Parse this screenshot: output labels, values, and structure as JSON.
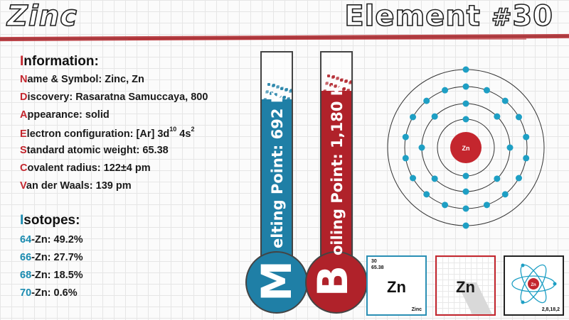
{
  "header": {
    "title": "Zinc",
    "element_label": "Element",
    "hash": "#",
    "element_number": "30"
  },
  "info": {
    "heading_cap": "I",
    "heading_rest": "nformation:",
    "lines": [
      {
        "cap": "N",
        "text": "ame & Symbol: Zinc, Zn"
      },
      {
        "cap": "D",
        "text": "iscovery: Rasaratna Samuccaya, 800"
      },
      {
        "cap": "A",
        "text": "ppearance: solid"
      },
      {
        "cap": "E",
        "text": "lectron configuration: [Ar] 3d",
        "sup1": "10",
        "mid": " 4s",
        "sup2": "2"
      },
      {
        "cap": "S",
        "text": "tandard atomic weight: 65.38"
      },
      {
        "cap": "C",
        "text": "ovalent radius: 122±4 pm"
      },
      {
        "cap": "V",
        "text": "an der Waals: 139 pm"
      }
    ]
  },
  "isotopes": {
    "heading_cap": "I",
    "heading_rest": "sotopes:",
    "items": [
      {
        "num": "64",
        "text": "-Zn: 49.2%"
      },
      {
        "num": "66",
        "text": "-Zn: 27.7%"
      },
      {
        "num": "68",
        "text": "-Zn: 18.5%"
      },
      {
        "num": "70",
        "text": "-Zn: 0.6%"
      }
    ]
  },
  "melting": {
    "letter": "M",
    "label": "elting Point: 692 K",
    "color": "#1f7fa6",
    "fill_level": 0.78
  },
  "boiling": {
    "letter": "B",
    "label": "oiling Point: 1,180 K",
    "color": "#b0222a",
    "fill_level": 0.82
  },
  "atom": {
    "nucleus_label": "Zn",
    "nucleus_color": "#c4262e",
    "electron_color": "#1e9fc4",
    "shells": [
      2,
      8,
      18,
      2
    ]
  },
  "cards": {
    "card1": {
      "number": "30",
      "weight": "65.38",
      "symbol": "Zn",
      "name": "Zinc"
    },
    "card2": {
      "symbol": "Zn"
    },
    "card3": {
      "shell_config": "2,8,18,2",
      "nucleus_label": "Zn"
    }
  }
}
